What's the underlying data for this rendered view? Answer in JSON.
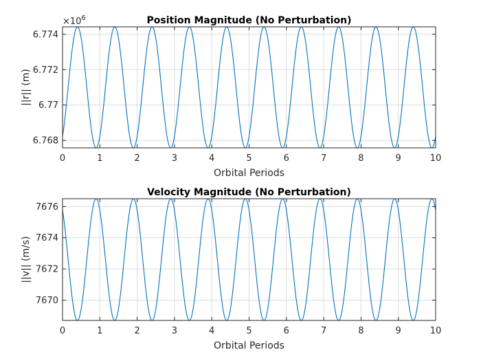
{
  "chart_data": [
    {
      "type": "line",
      "title": "Position Magnitude (No Perturbation)",
      "xlabel": "Orbital Periods",
      "ylabel": "||r|| (m)",
      "exponent_label": "×10",
      "exponent_power": "6",
      "xlim": [
        0,
        10
      ],
      "ylim": [
        6.76758,
        6.77442
      ],
      "xticks": [
        0,
        1,
        2,
        3,
        4,
        5,
        6,
        7,
        8,
        9,
        10
      ],
      "xtick_labels": [
        "0",
        "1",
        "2",
        "3",
        "4",
        "5",
        "6",
        "7",
        "8",
        "9",
        "10"
      ],
      "yticks": [
        6.768,
        6.77,
        6.772,
        6.774
      ],
      "ytick_labels": [
        "6.768",
        "6.77",
        "6.772",
        "6.774"
      ],
      "grid": true,
      "series": [
        {
          "color": "#0072BD",
          "form": "sinusoid",
          "x_range": [
            0,
            10
          ],
          "min": 6.76758,
          "max": 6.77442,
          "period": 1.0,
          "first_peak_x": 0.4,
          "start_value": 6.768
        }
      ]
    },
    {
      "type": "line",
      "title": "Velocity Magnitude (No Perturbation)",
      "xlabel": "Orbital Periods",
      "ylabel": "||v|| (m/s)",
      "xlim": [
        0,
        10
      ],
      "ylim": [
        7668.7,
        7676.5
      ],
      "xticks": [
        0,
        1,
        2,
        3,
        4,
        5,
        6,
        7,
        8,
        9,
        10
      ],
      "xtick_labels": [
        "0",
        "1",
        "2",
        "3",
        "4",
        "5",
        "6",
        "7",
        "8",
        "9",
        "10"
      ],
      "yticks": [
        7670,
        7672,
        7674,
        7676
      ],
      "ytick_labels": [
        "7670",
        "7672",
        "7674",
        "7676"
      ],
      "grid": true,
      "series": [
        {
          "color": "#0072BD",
          "form": "sinusoid",
          "x_range": [
            0,
            10
          ],
          "min": 7668.7,
          "max": 7676.5,
          "period": 1.0,
          "first_peak_x": 0.9,
          "start_value": 7676.0
        }
      ]
    }
  ]
}
